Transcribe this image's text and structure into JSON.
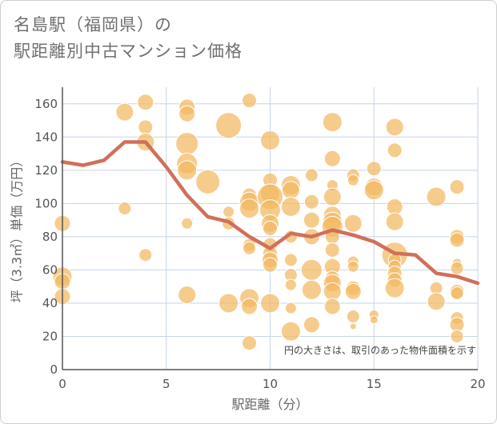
{
  "title": {
    "line1": "名島駅（福岡県）の",
    "line2": "駅距離別中古マンション価格"
  },
  "note": "円の大きさは、取引のあった物件面積を示す",
  "colors": {
    "bubble": "#f2b861",
    "bubble_stroke": "#ffffff",
    "line": "#d0705a",
    "grid": "#c5d5e8",
    "axis": "#555555"
  },
  "chart_data": {
    "type": "scatter",
    "xlabel": "駅距離（分）",
    "ylabel": "坪（3.3㎡）単価（万円）",
    "xlim": [
      0,
      20
    ],
    "ylim": [
      0,
      170
    ],
    "xticks": [
      0,
      5,
      10,
      15,
      20
    ],
    "yticks": [
      0,
      20,
      40,
      60,
      80,
      100,
      120,
      140,
      160
    ],
    "grid": true,
    "bubbles": [
      {
        "x": 0,
        "y": 88,
        "s": 10
      },
      {
        "x": 0,
        "y": 56,
        "s": 12
      },
      {
        "x": 0,
        "y": 53,
        "s": 10
      },
      {
        "x": 0,
        "y": 44,
        "s": 10
      },
      {
        "x": 3,
        "y": 155,
        "s": 11
      },
      {
        "x": 3,
        "y": 97,
        "s": 8
      },
      {
        "x": 4,
        "y": 161,
        "s": 10
      },
      {
        "x": 4,
        "y": 146,
        "s": 9
      },
      {
        "x": 4,
        "y": 137,
        "s": 11
      },
      {
        "x": 4,
        "y": 69,
        "s": 8
      },
      {
        "x": 6,
        "y": 158,
        "s": 10
      },
      {
        "x": 6,
        "y": 154,
        "s": 10
      },
      {
        "x": 6,
        "y": 136,
        "s": 14
      },
      {
        "x": 6,
        "y": 124,
        "s": 13
      },
      {
        "x": 6,
        "y": 120,
        "s": 12
      },
      {
        "x": 6,
        "y": 88,
        "s": 7
      },
      {
        "x": 6,
        "y": 45,
        "s": 11
      },
      {
        "x": 7,
        "y": 113,
        "s": 15
      },
      {
        "x": 8,
        "y": 147,
        "s": 16
      },
      {
        "x": 8,
        "y": 95,
        "s": 7
      },
      {
        "x": 8,
        "y": 88,
        "s": 8
      },
      {
        "x": 8,
        "y": 40,
        "s": 12
      },
      {
        "x": 9,
        "y": 162,
        "s": 9
      },
      {
        "x": 9,
        "y": 105,
        "s": 9
      },
      {
        "x": 9,
        "y": 101,
        "s": 12
      },
      {
        "x": 9,
        "y": 97,
        "s": 12
      },
      {
        "x": 9,
        "y": 75,
        "s": 8
      },
      {
        "x": 9,
        "y": 73,
        "s": 8
      },
      {
        "x": 9,
        "y": 43,
        "s": 12
      },
      {
        "x": 9,
        "y": 38,
        "s": 10
      },
      {
        "x": 9,
        "y": 16,
        "s": 9
      },
      {
        "x": 10,
        "y": 138,
        "s": 12
      },
      {
        "x": 10,
        "y": 114,
        "s": 9
      },
      {
        "x": 10,
        "y": 106,
        "s": 12
      },
      {
        "x": 10,
        "y": 104,
        "s": 16
      },
      {
        "x": 10,
        "y": 96,
        "s": 13
      },
      {
        "x": 10,
        "y": 88,
        "s": 11
      },
      {
        "x": 10,
        "y": 85,
        "s": 9
      },
      {
        "x": 10,
        "y": 75,
        "s": 9
      },
      {
        "x": 10,
        "y": 70,
        "s": 9
      },
      {
        "x": 10,
        "y": 66,
        "s": 10
      },
      {
        "x": 10,
        "y": 63,
        "s": 9
      },
      {
        "x": 10,
        "y": 40,
        "s": 12
      },
      {
        "x": 11,
        "y": 111,
        "s": 12
      },
      {
        "x": 11,
        "y": 108,
        "s": 11
      },
      {
        "x": 11,
        "y": 98,
        "s": 12
      },
      {
        "x": 11,
        "y": 80,
        "s": 8
      },
      {
        "x": 11,
        "y": 66,
        "s": 8
      },
      {
        "x": 11,
        "y": 57,
        "s": 8
      },
      {
        "x": 11,
        "y": 51,
        "s": 7
      },
      {
        "x": 11,
        "y": 37,
        "s": 7
      },
      {
        "x": 11,
        "y": 23,
        "s": 12
      },
      {
        "x": 12,
        "y": 117,
        "s": 8
      },
      {
        "x": 12,
        "y": 101,
        "s": 9
      },
      {
        "x": 12,
        "y": 90,
        "s": 10
      },
      {
        "x": 12,
        "y": 80,
        "s": 10
      },
      {
        "x": 12,
        "y": 60,
        "s": 13
      },
      {
        "x": 12,
        "y": 48,
        "s": 12
      },
      {
        "x": 12,
        "y": 27,
        "s": 10
      },
      {
        "x": 13,
        "y": 149,
        "s": 12
      },
      {
        "x": 13,
        "y": 127,
        "s": 10
      },
      {
        "x": 13,
        "y": 111,
        "s": 7
      },
      {
        "x": 13,
        "y": 104,
        "s": 11
      },
      {
        "x": 13,
        "y": 93,
        "s": 11
      },
      {
        "x": 13,
        "y": 89,
        "s": 12
      },
      {
        "x": 13,
        "y": 86,
        "s": 13
      },
      {
        "x": 13,
        "y": 80,
        "s": 9
      },
      {
        "x": 13,
        "y": 72,
        "s": 9
      },
      {
        "x": 13,
        "y": 62,
        "s": 10
      },
      {
        "x": 13,
        "y": 55,
        "s": 9
      },
      {
        "x": 13,
        "y": 52,
        "s": 11
      },
      {
        "x": 13,
        "y": 47,
        "s": 11
      },
      {
        "x": 13,
        "y": 38,
        "s": 10
      },
      {
        "x": 14,
        "y": 117,
        "s": 8
      },
      {
        "x": 14,
        "y": 114,
        "s": 7
      },
      {
        "x": 14,
        "y": 88,
        "s": 11
      },
      {
        "x": 14,
        "y": 65,
        "s": 7
      },
      {
        "x": 14,
        "y": 62,
        "s": 7
      },
      {
        "x": 14,
        "y": 49,
        "s": 9
      },
      {
        "x": 14,
        "y": 47,
        "s": 10
      },
      {
        "x": 14,
        "y": 32,
        "s": 8
      },
      {
        "x": 14,
        "y": 26,
        "s": 4
      },
      {
        "x": 15,
        "y": 121,
        "s": 9
      },
      {
        "x": 15,
        "y": 110,
        "s": 11
      },
      {
        "x": 15,
        "y": 108,
        "s": 12
      },
      {
        "x": 15,
        "y": 33,
        "s": 6
      },
      {
        "x": 15,
        "y": 30,
        "s": 5
      },
      {
        "x": 16,
        "y": 146,
        "s": 11
      },
      {
        "x": 16,
        "y": 132,
        "s": 9
      },
      {
        "x": 16,
        "y": 98,
        "s": 10
      },
      {
        "x": 16,
        "y": 89,
        "s": 11
      },
      {
        "x": 16,
        "y": 69,
        "s": 16
      },
      {
        "x": 16,
        "y": 66,
        "s": 8
      },
      {
        "x": 16,
        "y": 62,
        "s": 8
      },
      {
        "x": 16,
        "y": 58,
        "s": 9
      },
      {
        "x": 16,
        "y": 54,
        "s": 9
      },
      {
        "x": 16,
        "y": 49,
        "s": 12
      },
      {
        "x": 18,
        "y": 104,
        "s": 12
      },
      {
        "x": 18,
        "y": 49,
        "s": 8
      },
      {
        "x": 18,
        "y": 41,
        "s": 11
      },
      {
        "x": 19,
        "y": 110,
        "s": 9
      },
      {
        "x": 19,
        "y": 80,
        "s": 9
      },
      {
        "x": 19,
        "y": 78,
        "s": 9
      },
      {
        "x": 19,
        "y": 64,
        "s": 6
      },
      {
        "x": 19,
        "y": 61,
        "s": 8
      },
      {
        "x": 19,
        "y": 47,
        "s": 9
      },
      {
        "x": 19,
        "y": 46,
        "s": 8
      },
      {
        "x": 19,
        "y": 31,
        "s": 8
      },
      {
        "x": 19,
        "y": 27,
        "s": 9
      },
      {
        "x": 19,
        "y": 20,
        "s": 8
      }
    ],
    "average_line": {
      "x": [
        0,
        1,
        2,
        3,
        4,
        5,
        6,
        7,
        8,
        9,
        10,
        11,
        12,
        13,
        14,
        15,
        16,
        17,
        18,
        19,
        20
      ],
      "y": [
        125,
        123,
        126,
        137,
        137,
        122,
        105,
        92,
        89,
        80,
        73,
        82,
        80,
        84,
        81,
        77,
        70,
        69,
        58,
        56,
        52
      ]
    }
  }
}
